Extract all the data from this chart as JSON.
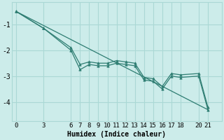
{
  "xlabel": "Humidex (Indice chaleur)",
  "background_color": "#ccecea",
  "grid_color": "#aad8d5",
  "line_color": "#2e7d72",
  "xlim": [
    -0.5,
    22.5
  ],
  "ylim": [
    -4.75,
    -0.15
  ],
  "yticks": [
    -4,
    -3,
    -2,
    -1
  ],
  "xticks": [
    0,
    3,
    6,
    7,
    8,
    9,
    10,
    11,
    12,
    13,
    14,
    15,
    16,
    17,
    18,
    20,
    21
  ],
  "main_x": [
    0,
    3,
    6,
    7,
    8,
    9,
    10,
    11,
    12,
    13,
    14,
    15,
    16,
    17,
    18,
    20,
    21
  ],
  "main_y": [
    -0.5,
    -1.15,
    -2.0,
    -2.75,
    -2.55,
    -2.6,
    -2.6,
    -2.5,
    -2.55,
    -2.6,
    -3.15,
    -3.2,
    -3.5,
    -3.0,
    -3.05,
    -3.0,
    -4.3
  ],
  "upper_x": [
    0,
    3,
    6,
    7,
    8,
    9,
    10,
    11,
    12,
    13,
    14,
    15,
    16,
    17,
    18,
    20,
    21
  ],
  "upper_y": [
    -0.5,
    -1.15,
    -1.9,
    -2.55,
    -2.45,
    -2.5,
    -2.5,
    -2.4,
    -2.45,
    -2.5,
    -3.05,
    -3.1,
    -3.4,
    -2.9,
    -2.95,
    -2.9,
    -4.2
  ],
  "trend_x": [
    0,
    21
  ],
  "trend_y": [
    -0.5,
    -4.3
  ],
  "fontsize": 6.5
}
